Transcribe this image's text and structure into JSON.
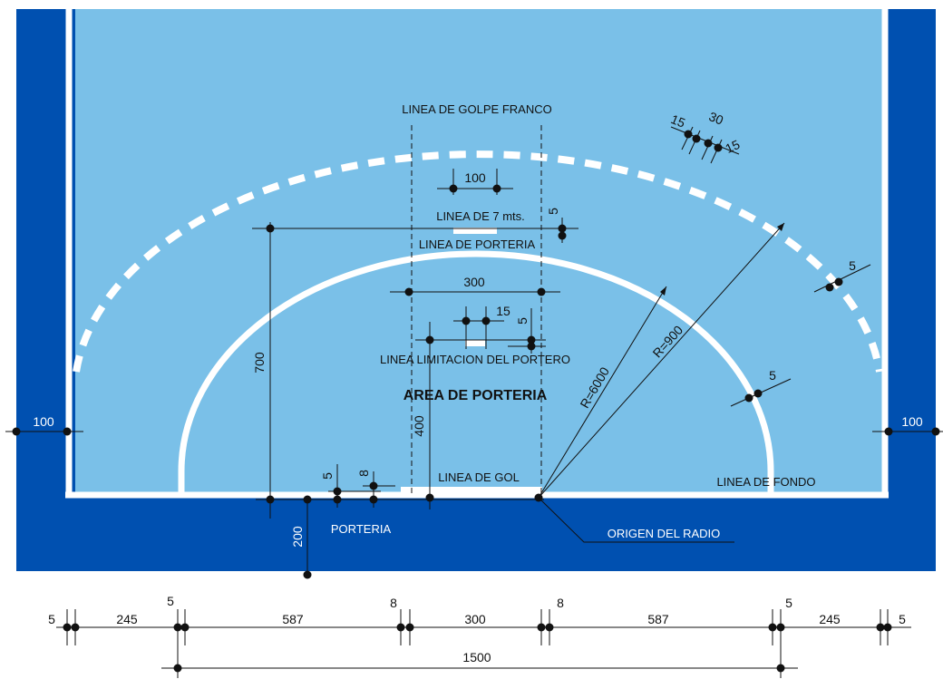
{
  "labels": {
    "linea_golpe_franco": "LINEA DE GOLPE FRANCO",
    "linea_7m": "LINEA DE 7 mts.",
    "linea_porteria": "LINEA DE PORTERIA",
    "linea_limitacion": "LINEA LIMITACION DEL PORTERO",
    "area_porteria": "AREA DE PORTERIA",
    "linea_gol": "LINEA DE GOL",
    "linea_fondo": "LINEA DE FONDO",
    "porteria": "PORTERIA",
    "origen_radio": "ORIGEN DEL RADIO"
  },
  "dims": {
    "d100_top": "100",
    "d15_arc": "15",
    "d30_arc": "30",
    "d15b_arc": "15",
    "d5_7m": "5",
    "d300": "300",
    "d15_mid": "15",
    "d5_mid": "5",
    "d5_dash": "5",
    "d5_arc": "5",
    "d700": "700",
    "d400": "400",
    "r6000": "R=6000",
    "r900": "R=900",
    "d100_left": "100",
    "d100_right": "100",
    "d5_small": "5",
    "d8_small": "8",
    "d200": "200"
  },
  "bottom_dims": {
    "a": "5",
    "b": "245",
    "c": "5",
    "d": "587",
    "e": "8",
    "f": "300",
    "g": "8",
    "h": "587",
    "i": "5",
    "j": "245",
    "k": "5",
    "total": "1500"
  },
  "colors": {
    "court_dark": "#0050b0",
    "court_light": "#7ac0e8",
    "line": "#ffffff"
  }
}
